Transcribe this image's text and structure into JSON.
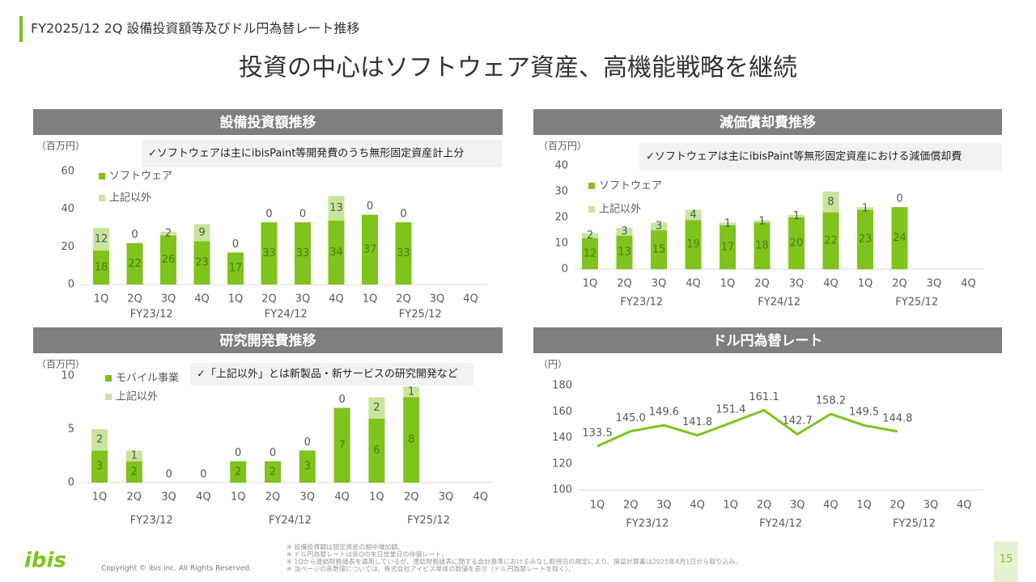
{
  "header": {
    "section": "FY2025/12 2Q 設備投資額等及びドル円為替レート推移",
    "title": "投資の中心はソフトウェア資産、高機能戦略を継続"
  },
  "chart_data": [
    {
      "type": "bar",
      "stacked": true,
      "title": "設備投資額推移",
      "unit": "（百万円）",
      "note": "✓ソフトウェアは主にibisPaint等開発費のうち無形固定資産計上分",
      "categories": [
        "1Q",
        "2Q",
        "3Q",
        "4Q",
        "1Q",
        "2Q",
        "3Q",
        "4Q",
        "1Q",
        "2Q",
        "3Q",
        "4Q"
      ],
      "groups": [
        "FY23/12",
        "FY24/12",
        "FY25/12"
      ],
      "ylim": [
        0,
        60
      ],
      "yticks": [
        0,
        20,
        40,
        60
      ],
      "series": [
        {
          "name": "ソフトウェア",
          "color": "#7fc31c",
          "values": [
            18,
            22,
            26,
            23,
            17,
            33,
            33,
            34,
            37,
            33,
            null,
            null
          ]
        },
        {
          "name": "上記以外",
          "color": "#c9e59c",
          "values": [
            12,
            0,
            2,
            9,
            0,
            0,
            0,
            13,
            0,
            0,
            null,
            null
          ]
        }
      ]
    },
    {
      "type": "bar",
      "stacked": true,
      "title": "減価償却費推移",
      "unit": "（百万円）",
      "note": "✓ソフトウェアは主にibisPaint等無形固定資産における減価償却費",
      "categories": [
        "1Q",
        "2Q",
        "3Q",
        "4Q",
        "1Q",
        "2Q",
        "3Q",
        "4Q",
        "1Q",
        "2Q",
        "3Q",
        "4Q"
      ],
      "groups": [
        "FY23/12",
        "FY24/12",
        "FY25/12"
      ],
      "ylim": [
        0,
        40
      ],
      "yticks": [
        0,
        10,
        20,
        30,
        40
      ],
      "series": [
        {
          "name": "ソフトウェア",
          "color": "#7fc31c",
          "values": [
            12,
            13,
            15,
            19,
            17,
            18,
            20,
            22,
            23,
            24,
            null,
            null
          ]
        },
        {
          "name": "上記以外",
          "color": "#c9e59c",
          "values": [
            2,
            3,
            3,
            4,
            1,
            1,
            1,
            8,
            1,
            0,
            null,
            null
          ]
        }
      ]
    },
    {
      "type": "bar",
      "stacked": true,
      "title": "研究開発費推移",
      "unit": "（百万円）",
      "note": "✓「上記以外」とは新製品・新サービスの研究開発など",
      "categories": [
        "1Q",
        "2Q",
        "3Q",
        "4Q",
        "1Q",
        "2Q",
        "3Q",
        "4Q",
        "1Q",
        "2Q",
        "3Q",
        "4Q"
      ],
      "groups": [
        "FY23/12",
        "FY24/12",
        "FY25/12"
      ],
      "ylim": [
        0,
        10
      ],
      "yticks": [
        0,
        5,
        10
      ],
      "series": [
        {
          "name": "モバイル事業",
          "color": "#7fc31c",
          "values": [
            3,
            2,
            0,
            0,
            2,
            2,
            3,
            7,
            6,
            8,
            null,
            null
          ]
        },
        {
          "name": "上記以外",
          "color": "#c9e59c",
          "values": [
            2,
            1,
            null,
            null,
            0,
            0,
            0,
            0,
            2,
            1,
            null,
            null
          ]
        }
      ]
    },
    {
      "type": "line",
      "title": "ドル円為替レート",
      "unit": "（円）",
      "categories": [
        "1Q",
        "2Q",
        "3Q",
        "4Q",
        "1Q",
        "2Q",
        "3Q",
        "4Q",
        "1Q",
        "2Q",
        "3Q",
        "4Q"
      ],
      "groups": [
        "FY23/12",
        "FY24/12",
        "FY25/12"
      ],
      "ylim": [
        100,
        180
      ],
      "yticks": [
        100,
        120,
        140,
        160,
        180
      ],
      "color": "#7fc31c",
      "values": [
        133.5,
        145.0,
        149.6,
        141.8,
        151.4,
        161.1,
        142.7,
        158.2,
        149.5,
        144.8,
        null,
        null
      ],
      "value_labels": [
        "133.5",
        "145.0",
        "149.6",
        "141.8",
        "151.4",
        "161.1",
        "142.7",
        "158.2",
        "149.5",
        "144.8",
        null,
        null
      ]
    }
  ],
  "footer": {
    "logo": "ibis",
    "copyright": "Copyright © ibis inc. All Rights Reserved.",
    "page": "15",
    "notes": [
      "※ 設備投資額は固定資産の期中増加額。",
      "※ ドル円為替レートは各Qの末日営業日の仲値レート。",
      "※ 1Qから連結財務諸表を適用しているが、連結財務諸表に関する会計基準におけるみなし取得日の規定により、損益計算書は2025年4月1日から取り込み。",
      "※ 当ページの各数値については、株式会社アイビス単体の数値を表示（ドル円為替レートを除く）。"
    ]
  }
}
